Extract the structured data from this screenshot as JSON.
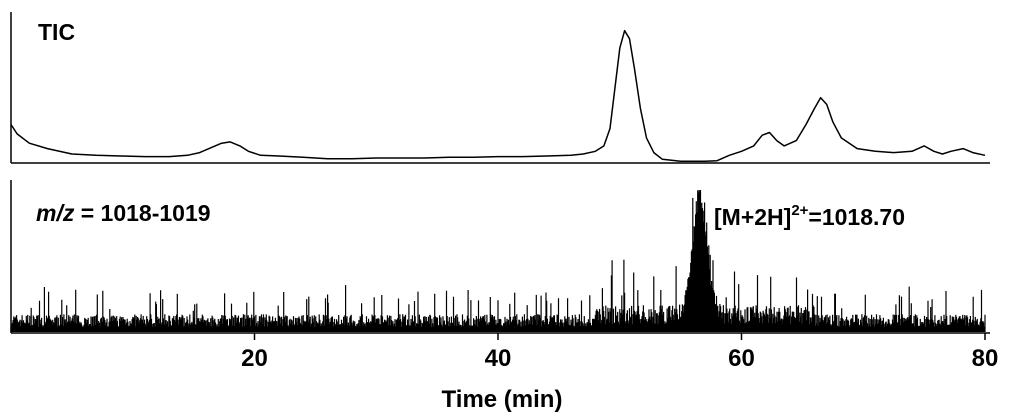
{
  "chart_data": {
    "type": "line",
    "xlabel": "Time (min)",
    "xlim": [
      0,
      80
    ],
    "xticks": [
      20,
      40,
      60,
      80
    ],
    "grid": false,
    "panels": [
      {
        "name": "TIC",
        "label": "TIC",
        "ylim": [
          0,
          100
        ],
        "trace": "smooth",
        "points": [
          [
            0,
            28
          ],
          [
            0.5,
            21
          ],
          [
            1.5,
            14
          ],
          [
            3,
            10
          ],
          [
            5,
            6
          ],
          [
            7,
            5
          ],
          [
            9,
            4.5
          ],
          [
            11,
            4
          ],
          [
            13,
            4
          ],
          [
            14.5,
            5
          ],
          [
            15.5,
            7
          ],
          [
            16.5,
            11
          ],
          [
            17.3,
            14
          ],
          [
            18,
            15
          ],
          [
            18.8,
            12
          ],
          [
            19.5,
            8
          ],
          [
            20.5,
            5
          ],
          [
            22,
            4.5
          ],
          [
            24,
            3.5
          ],
          [
            26,
            2.5
          ],
          [
            28,
            2.5
          ],
          [
            30,
            3
          ],
          [
            32,
            3
          ],
          [
            34,
            3
          ],
          [
            36,
            3.5
          ],
          [
            38,
            3.5
          ],
          [
            40,
            4
          ],
          [
            42,
            4
          ],
          [
            44,
            4.5
          ],
          [
            46,
            5
          ],
          [
            47,
            6
          ],
          [
            48,
            8
          ],
          [
            48.7,
            12
          ],
          [
            49.2,
            25
          ],
          [
            49.6,
            55
          ],
          [
            50,
            85
          ],
          [
            50.4,
            98
          ],
          [
            50.8,
            92
          ],
          [
            51.2,
            70
          ],
          [
            51.7,
            40
          ],
          [
            52.2,
            18
          ],
          [
            52.8,
            7
          ],
          [
            53.5,
            2
          ],
          [
            55,
            0.5
          ],
          [
            57,
            0.5
          ],
          [
            58,
            1
          ],
          [
            59,
            5
          ],
          [
            60,
            8
          ],
          [
            61,
            12
          ],
          [
            61.7,
            20
          ],
          [
            62.3,
            22
          ],
          [
            62.9,
            16
          ],
          [
            63.5,
            12
          ],
          [
            64.5,
            16
          ],
          [
            65.3,
            28
          ],
          [
            66,
            40
          ],
          [
            66.5,
            48
          ],
          [
            67,
            43
          ],
          [
            67.5,
            30
          ],
          [
            68.2,
            18
          ],
          [
            69.5,
            10
          ],
          [
            71,
            8
          ],
          [
            72.5,
            7
          ],
          [
            74,
            8
          ],
          [
            75,
            12
          ],
          [
            75.8,
            8
          ],
          [
            76.5,
            6
          ],
          [
            77.2,
            8
          ],
          [
            78.2,
            10
          ],
          [
            79,
            7
          ],
          [
            80,
            5
          ]
        ]
      },
      {
        "name": "m/z 1018-1019",
        "label_italic": "m/z",
        "label_rest": " = 1018-1019",
        "ylim": [
          0,
          100
        ],
        "trace": "noisy",
        "baseline_level": 9,
        "peak": {
          "x": 56.6,
          "height": 96,
          "width": 0.85
        },
        "annotation": {
          "base": "[M+2H]",
          "superscript": "2+",
          "value": "=1018.70"
        }
      }
    ]
  }
}
